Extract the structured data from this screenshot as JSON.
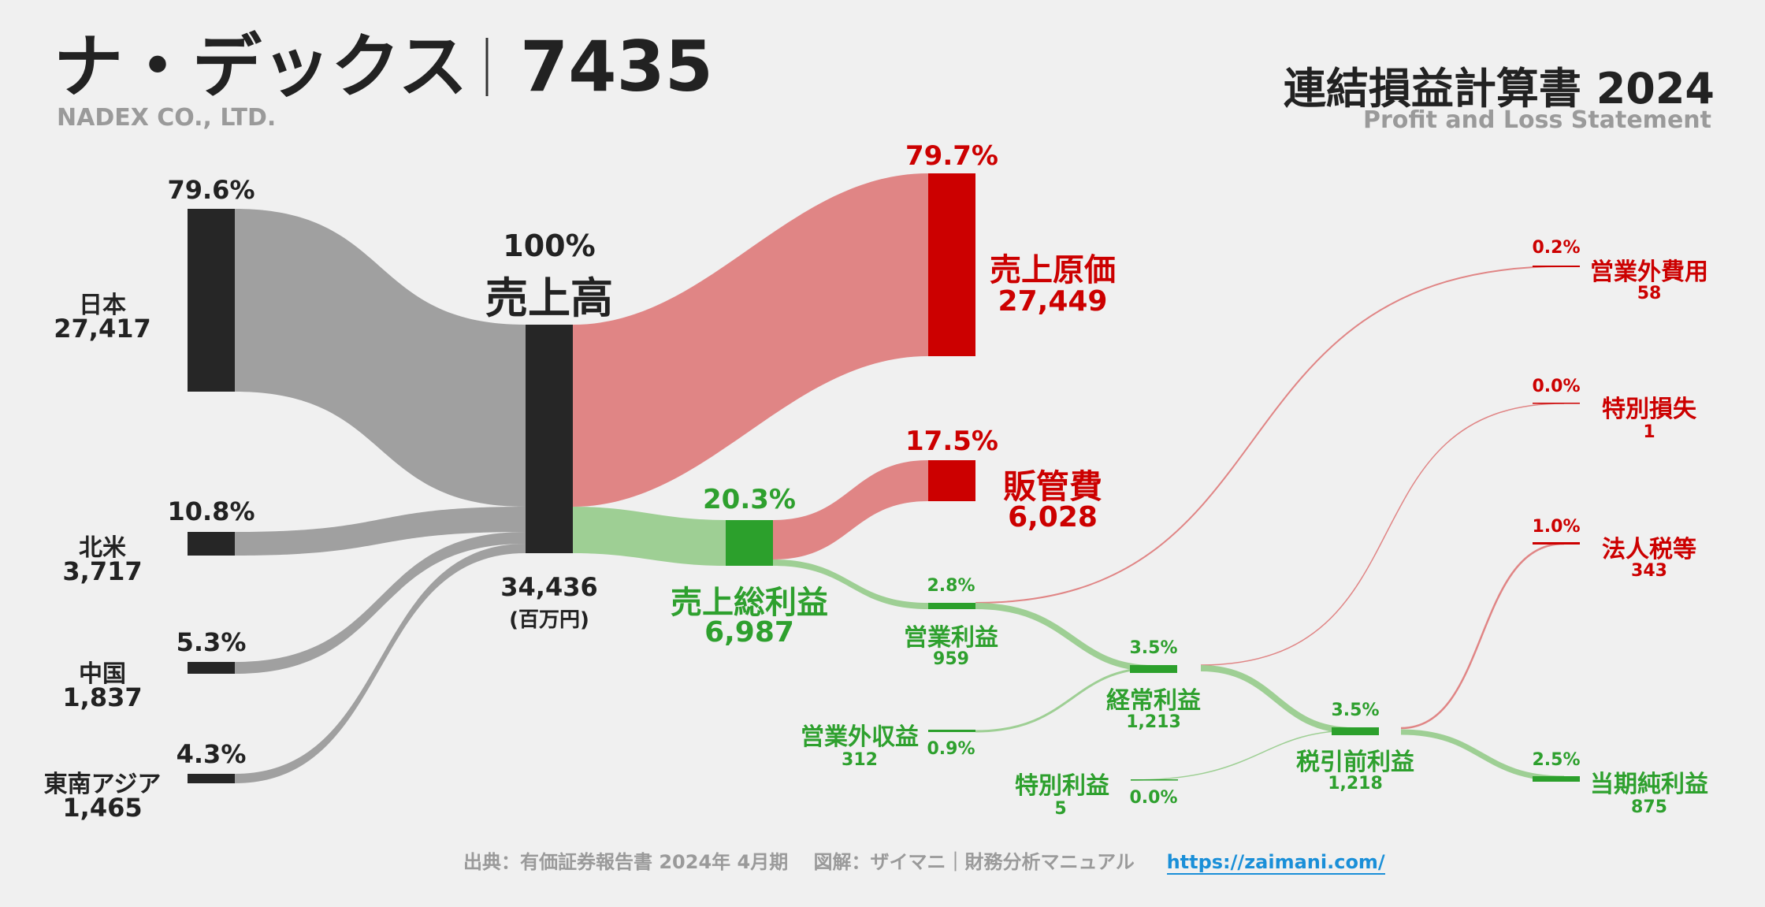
{
  "header": {
    "company_name": "ナ・デックス",
    "ticker": "7435",
    "company_en": "NADEX CO., LTD.",
    "statement_title": "連結損益計算書 2024",
    "statement_en": "Profit and Loss Statement"
  },
  "colors": {
    "node_dark": "#262626",
    "flow_gray": "#a0a0a0",
    "flow_red": "#e08585",
    "node_red": "#cc0000",
    "flow_green": "#9ecf94",
    "node_green": "#2ca02c",
    "text_red": "#cc0000",
    "text_green": "#2ea02e",
    "link_blue": "#1a8fd8",
    "background": "#f0f0f0"
  },
  "unit": "(百万円)",
  "segments": [
    {
      "name": "日本",
      "value": "27,417",
      "pct": "79.6%"
    },
    {
      "name": "北米",
      "value": "3,717",
      "pct": "10.8%"
    },
    {
      "name": "中国",
      "value": "1,837",
      "pct": "5.3%"
    },
    {
      "name": "東南アジア",
      "value": "1,465",
      "pct": "4.3%"
    }
  ],
  "revenue": {
    "name": "売上高",
    "value": "34,436",
    "pct": "100%"
  },
  "cost_of_sales": {
    "name": "売上原価",
    "value": "27,449",
    "pct": "79.7%"
  },
  "gross_profit": {
    "name": "売上総利益",
    "value": "6,987",
    "pct": "20.3%"
  },
  "sga": {
    "name": "販管費",
    "value": "6,028",
    "pct": "17.5%"
  },
  "operating_profit": {
    "name": "営業利益",
    "value": "959",
    "pct": "2.8%"
  },
  "non_op_income": {
    "name": "営業外収益",
    "value": "312",
    "pct": "0.9%"
  },
  "non_op_expense": {
    "name": "営業外費用",
    "value": "58",
    "pct": "0.2%"
  },
  "ordinary_profit": {
    "name": "経常利益",
    "value": "1,213",
    "pct": "3.5%"
  },
  "extraordinary_income": {
    "name": "特別利益",
    "value": "5",
    "pct": "0.0%"
  },
  "extraordinary_loss": {
    "name": "特別損失",
    "value": "1",
    "pct": "0.0%"
  },
  "pretax_profit": {
    "name": "税引前利益",
    "value": "1,218",
    "pct": "3.5%"
  },
  "income_tax": {
    "name": "法人税等",
    "value": "343",
    "pct": "1.0%"
  },
  "net_profit": {
    "name": "当期純利益",
    "value": "875",
    "pct": "2.5%"
  },
  "footer": {
    "source": "出典：有価証券報告書 2024年 4月期　 図解：ザイマニ｜財務分析マニュアル",
    "url": "https://zaimani.com/"
  }
}
